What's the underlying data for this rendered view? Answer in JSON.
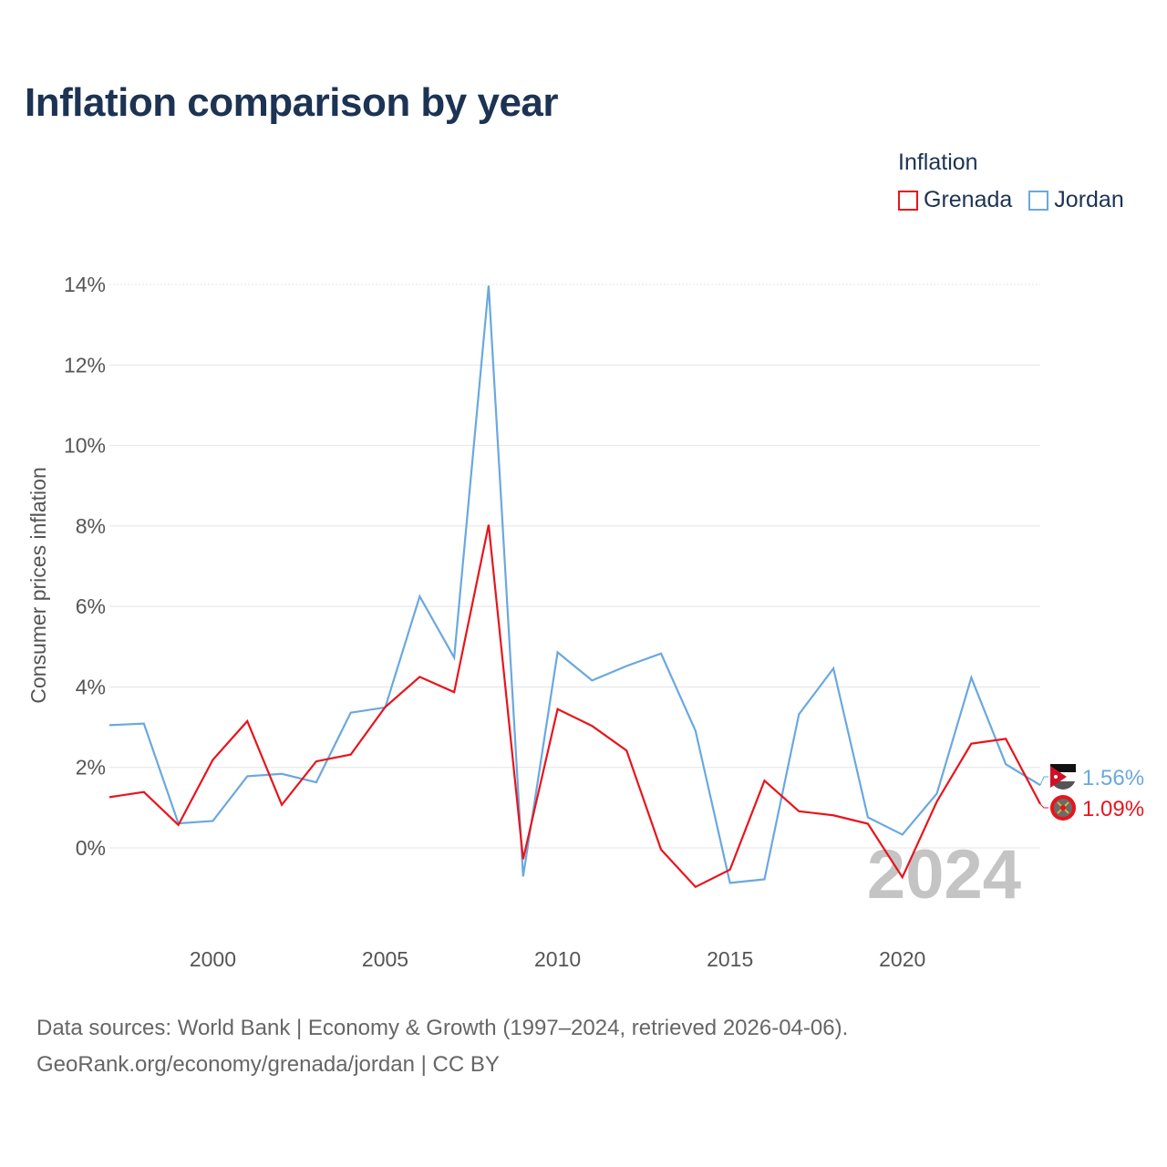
{
  "title": "Inflation comparison by year",
  "legend": {
    "title": "Inflation",
    "items": [
      {
        "name": "Grenada",
        "color": "#e8141c"
      },
      {
        "name": "Jordan",
        "color": "#6aa8e0"
      }
    ]
  },
  "source": {
    "line1": "Data sources: World Bank | Economy & Growth (1997–2024, retrieved 2026-04-06).",
    "line2": "GeoRank.org/economy/grenada/jordan | CC BY"
  },
  "chart_data": {
    "type": "line",
    "title": "Inflation comparison by year",
    "xlabel": "",
    "ylabel": "Consumer prices inflation",
    "year_watermark": "2024",
    "xlim": [
      1997,
      2024
    ],
    "ylim": [
      -2,
      14
    ],
    "x_ticks": [
      2000,
      2005,
      2010,
      2015,
      2020
    ],
    "y_ticks": [
      0,
      2,
      4,
      6,
      8,
      10,
      12,
      14
    ],
    "y_tick_labels": [
      "0%",
      "2%",
      "4%",
      "6%",
      "8%",
      "10%",
      "12%",
      "14%"
    ],
    "x": [
      1997,
      1998,
      1999,
      2000,
      2001,
      2002,
      2003,
      2004,
      2005,
      2006,
      2007,
      2008,
      2009,
      2010,
      2011,
      2012,
      2013,
      2014,
      2015,
      2016,
      2017,
      2018,
      2019,
      2020,
      2021,
      2022,
      2023,
      2024
    ],
    "series": [
      {
        "name": "Grenada",
        "color": "#e8141c",
        "end_label": "1.09%",
        "values": [
          1.26,
          1.39,
          0.57,
          2.19,
          3.15,
          1.07,
          2.15,
          2.32,
          3.5,
          4.25,
          3.87,
          8.03,
          -0.28,
          3.45,
          3.03,
          2.42,
          -0.04,
          -0.97,
          -0.54,
          1.67,
          0.91,
          0.81,
          0.6,
          -0.73,
          1.15,
          2.59,
          2.71,
          1.09
        ]
      },
      {
        "name": "Jordan",
        "color": "#6aa8e0",
        "end_label": "1.56%",
        "values": [
          3.05,
          3.09,
          0.61,
          0.67,
          1.78,
          1.84,
          1.63,
          3.36,
          3.49,
          6.25,
          4.73,
          13.97,
          -0.71,
          4.86,
          4.16,
          4.52,
          4.83,
          2.91,
          -0.87,
          -0.78,
          3.32,
          4.46,
          0.76,
          0.33,
          1.35,
          4.23,
          2.08,
          1.56
        ]
      }
    ]
  }
}
